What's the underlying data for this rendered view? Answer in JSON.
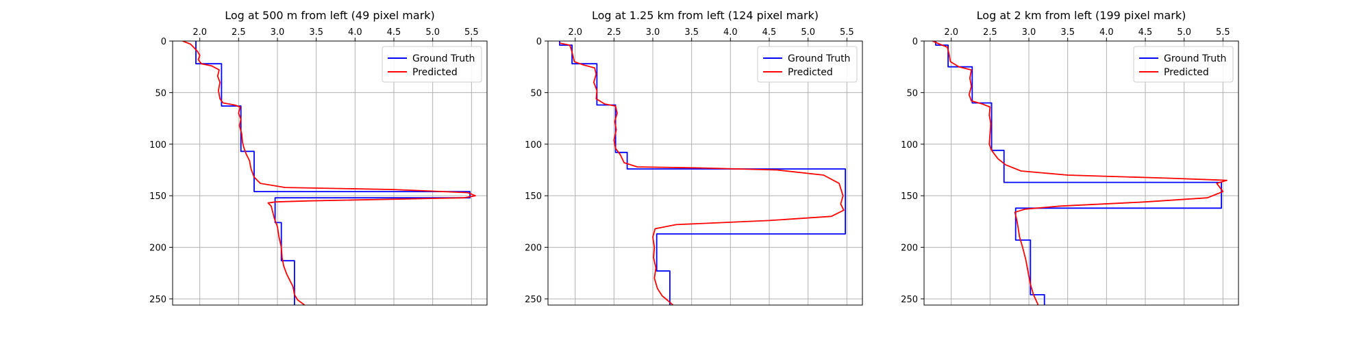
{
  "colors": {
    "ground_truth": "#0000ff",
    "predicted": "#ff0000",
    "grid": "#b0b0b0",
    "axis": "#000000"
  },
  "chart_data": [
    {
      "type": "line",
      "title": "Log at 500 m from left (49 pixel mark)",
      "xlim": [
        1.65,
        5.7
      ],
      "ylim": [
        256,
        0
      ],
      "y_inverted": true,
      "xticks": [
        2.0,
        2.5,
        3.0,
        3.5,
        4.0,
        4.5,
        5.0,
        5.5
      ],
      "yticks": [
        0,
        50,
        100,
        150,
        200,
        250
      ],
      "grid": true,
      "legend_position": "top-right",
      "series": [
        {
          "name": "Ground Truth",
          "color": "#0000ff",
          "points": [
            [
              1.95,
              0
            ],
            [
              1.95,
              22
            ],
            [
              2.28,
              22
            ],
            [
              2.28,
              63
            ],
            [
              2.53,
              63
            ],
            [
              2.53,
              107
            ],
            [
              2.7,
              107
            ],
            [
              2.7,
              146
            ],
            [
              5.48,
              146
            ],
            [
              5.48,
              152
            ],
            [
              2.97,
              152
            ],
            [
              2.97,
              176
            ],
            [
              3.05,
              176
            ],
            [
              3.05,
              213
            ],
            [
              3.22,
              213
            ],
            [
              3.22,
              256
            ]
          ]
        },
        {
          "name": "Predicted",
          "color": "#ff0000",
          "points": [
            [
              1.78,
              0
            ],
            [
              1.88,
              3
            ],
            [
              1.92,
              6
            ],
            [
              1.97,
              10
            ],
            [
              2.0,
              14
            ],
            [
              1.98,
              18
            ],
            [
              2.02,
              22
            ],
            [
              2.15,
              24
            ],
            [
              2.25,
              28
            ],
            [
              2.23,
              34
            ],
            [
              2.26,
              40
            ],
            [
              2.24,
              48
            ],
            [
              2.26,
              56
            ],
            [
              2.3,
              60
            ],
            [
              2.45,
              62
            ],
            [
              2.52,
              64
            ],
            [
              2.5,
              70
            ],
            [
              2.53,
              76
            ],
            [
              2.51,
              82
            ],
            [
              2.54,
              90
            ],
            [
              2.55,
              98
            ],
            [
              2.57,
              104
            ],
            [
              2.6,
              110
            ],
            [
              2.64,
              116
            ],
            [
              2.66,
              124
            ],
            [
              2.7,
              132
            ],
            [
              2.78,
              138
            ],
            [
              3.1,
              142
            ],
            [
              4.5,
              144
            ],
            [
              5.45,
              147
            ],
            [
              5.55,
              150
            ],
            [
              5.4,
              152
            ],
            [
              3.4,
              155
            ],
            [
              2.98,
              156
            ],
            [
              2.88,
              157
            ],
            [
              2.92,
              160
            ],
            [
              2.94,
              166
            ],
            [
              2.96,
              172
            ],
            [
              3.0,
              180
            ],
            [
              3.02,
              190
            ],
            [
              3.05,
              200
            ],
            [
              3.06,
              210
            ],
            [
              3.08,
              218
            ],
            [
              3.12,
              226
            ],
            [
              3.16,
              232
            ],
            [
              3.2,
              238
            ],
            [
              3.22,
              246
            ],
            [
              3.26,
              251
            ],
            [
              3.35,
              256
            ]
          ]
        }
      ]
    },
    {
      "type": "line",
      "title": "Log at 1.25 km from left (124 pixel mark)",
      "xlim": [
        1.65,
        5.7
      ],
      "ylim": [
        256,
        0
      ],
      "y_inverted": true,
      "xticks": [
        2.0,
        2.5,
        3.0,
        3.5,
        4.0,
        4.5,
        5.0,
        5.5
      ],
      "yticks": [
        0,
        50,
        100,
        150,
        200,
        250
      ],
      "grid": true,
      "legend_position": "top-right",
      "series": [
        {
          "name": "Ground Truth",
          "color": "#0000ff",
          "points": [
            [
              1.8,
              0
            ],
            [
              1.8,
              4
            ],
            [
              1.96,
              4
            ],
            [
              1.96,
              22
            ],
            [
              2.28,
              22
            ],
            [
              2.28,
              62
            ],
            [
              2.52,
              62
            ],
            [
              2.52,
              108
            ],
            [
              2.67,
              108
            ],
            [
              2.67,
              124
            ],
            [
              5.48,
              124
            ],
            [
              5.48,
              187
            ],
            [
              3.05,
              187
            ],
            [
              3.05,
              223
            ],
            [
              3.22,
              223
            ],
            [
              3.22,
              256
            ]
          ]
        },
        {
          "name": "Predicted",
          "color": "#ff0000",
          "points": [
            [
              1.8,
              2
            ],
            [
              1.93,
              4
            ],
            [
              1.95,
              8
            ],
            [
              1.97,
              14
            ],
            [
              1.99,
              20
            ],
            [
              2.1,
              23
            ],
            [
              2.25,
              26
            ],
            [
              2.27,
              32
            ],
            [
              2.24,
              40
            ],
            [
              2.28,
              48
            ],
            [
              2.27,
              56
            ],
            [
              2.38,
              61
            ],
            [
              2.52,
              63
            ],
            [
              2.54,
              70
            ],
            [
              2.51,
              78
            ],
            [
              2.53,
              86
            ],
            [
              2.5,
              96
            ],
            [
              2.52,
              104
            ],
            [
              2.58,
              110
            ],
            [
              2.63,
              118
            ],
            [
              2.8,
              122
            ],
            [
              3.6,
              123
            ],
            [
              4.6,
              125
            ],
            [
              5.2,
              130
            ],
            [
              5.4,
              138
            ],
            [
              5.45,
              150
            ],
            [
              5.42,
              158
            ],
            [
              5.46,
              164
            ],
            [
              5.3,
              170
            ],
            [
              4.5,
              174
            ],
            [
              3.3,
              178
            ],
            [
              3.03,
              182
            ],
            [
              3.0,
              190
            ],
            [
              3.02,
              200
            ],
            [
              3.01,
              210
            ],
            [
              3.04,
              220
            ],
            [
              3.02,
              230
            ],
            [
              3.06,
              240
            ],
            [
              3.12,
              247
            ],
            [
              3.2,
              252
            ],
            [
              3.26,
              256
            ]
          ]
        }
      ]
    },
    {
      "type": "line",
      "title": "Log at 2 km from left (199 pixel mark)",
      "xlim": [
        1.65,
        5.7
      ],
      "ylim": [
        256,
        0
      ],
      "y_inverted": true,
      "xticks": [
        2.0,
        2.5,
        3.0,
        3.5,
        4.0,
        4.5,
        5.0,
        5.5
      ],
      "yticks": [
        0,
        50,
        100,
        150,
        200,
        250
      ],
      "grid": true,
      "legend_position": "top-right",
      "series": [
        {
          "name": "Ground Truth",
          "color": "#0000ff",
          "points": [
            [
              1.8,
              0
            ],
            [
              1.8,
              4
            ],
            [
              1.96,
              4
            ],
            [
              1.96,
              25
            ],
            [
              2.27,
              25
            ],
            [
              2.27,
              60
            ],
            [
              2.52,
              60
            ],
            [
              2.52,
              106
            ],
            [
              2.68,
              106
            ],
            [
              2.68,
              137
            ],
            [
              5.48,
              137
            ],
            [
              5.48,
              162
            ],
            [
              2.83,
              162
            ],
            [
              2.83,
              193
            ],
            [
              3.02,
              193
            ],
            [
              3.02,
              246
            ],
            [
              3.2,
              246
            ],
            [
              3.2,
              256
            ]
          ]
        },
        {
          "name": "Predicted",
          "color": "#ff0000",
          "points": [
            [
              1.76,
              0
            ],
            [
              1.85,
              3
            ],
            [
              1.95,
              6
            ],
            [
              1.97,
              12
            ],
            [
              1.99,
              20
            ],
            [
              2.1,
              25
            ],
            [
              2.26,
              28
            ],
            [
              2.24,
              36
            ],
            [
              2.26,
              44
            ],
            [
              2.23,
              52
            ],
            [
              2.26,
              58
            ],
            [
              2.4,
              61
            ],
            [
              2.5,
              64
            ],
            [
              2.49,
              72
            ],
            [
              2.51,
              80
            ],
            [
              2.5,
              90
            ],
            [
              2.49,
              100
            ],
            [
              2.52,
              106
            ],
            [
              2.6,
              114
            ],
            [
              2.7,
              120
            ],
            [
              2.9,
              126
            ],
            [
              3.5,
              130
            ],
            [
              4.8,
              133
            ],
            [
              5.55,
              135
            ],
            [
              5.42,
              138
            ],
            [
              5.5,
              146
            ],
            [
              5.3,
              152
            ],
            [
              4.5,
              156
            ],
            [
              3.4,
              160
            ],
            [
              2.95,
              163
            ],
            [
              2.82,
              166
            ],
            [
              2.84,
              172
            ],
            [
              2.86,
              180
            ],
            [
              2.88,
              190
            ],
            [
              2.92,
              200
            ],
            [
              2.96,
              212
            ],
            [
              2.99,
              224
            ],
            [
              3.02,
              236
            ],
            [
              3.06,
              246
            ],
            [
              3.12,
              256
            ]
          ]
        }
      ]
    }
  ]
}
